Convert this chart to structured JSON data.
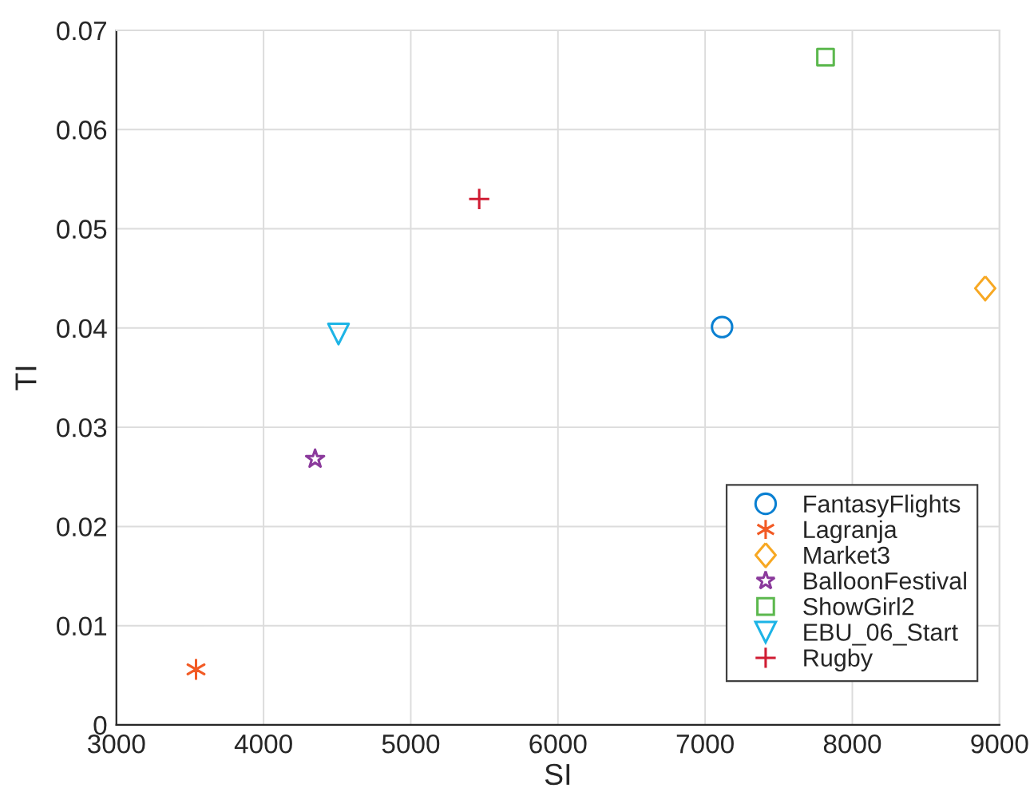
{
  "chart_data": {
    "type": "scatter",
    "xlabel": "SI",
    "ylabel": "TI",
    "xlim": [
      3000,
      9000
    ],
    "xticks": [
      3000,
      4000,
      5000,
      6000,
      7000,
      8000,
      9000
    ],
    "ylim": [
      0,
      0.07
    ],
    "yticks": [
      0,
      0.01,
      0.02,
      0.03,
      0.04,
      0.05,
      0.06,
      0.07
    ],
    "grid": true,
    "legend": "bottom right",
    "series": [
      {
        "name": "FantasyFlights",
        "color": "#0a80d2",
        "marker": "circle",
        "x": [
          7115
        ],
        "values": [
          0.0401
        ]
      },
      {
        "name": "Lagranja",
        "color": "#f25a24",
        "marker": "cross",
        "x": [
          3541
        ],
        "values": [
          0.0056
        ]
      },
      {
        "name": "Market3",
        "color": "#f7a823",
        "marker": "diamond",
        "x": [
          8903
        ],
        "values": [
          0.044
        ]
      },
      {
        "name": "BalloonFestival",
        "color": "#8b3a9c",
        "marker": "star",
        "x": [
          4350
        ],
        "values": [
          0.0268
        ]
      },
      {
        "name": "ShowGirl2",
        "color": "#5cb84e",
        "marker": "square",
        "x": [
          7818
        ],
        "values": [
          0.0673
        ]
      },
      {
        "name": "EBU_06_Start",
        "color": "#1db4e6",
        "marker": "triangle_down",
        "x": [
          4509
        ],
        "values": [
          0.0394
        ]
      },
      {
        "name": "Rugby",
        "color": "#d01c33",
        "marker": "plus",
        "x": [
          5465
        ],
        "values": [
          0.053
        ]
      }
    ]
  }
}
